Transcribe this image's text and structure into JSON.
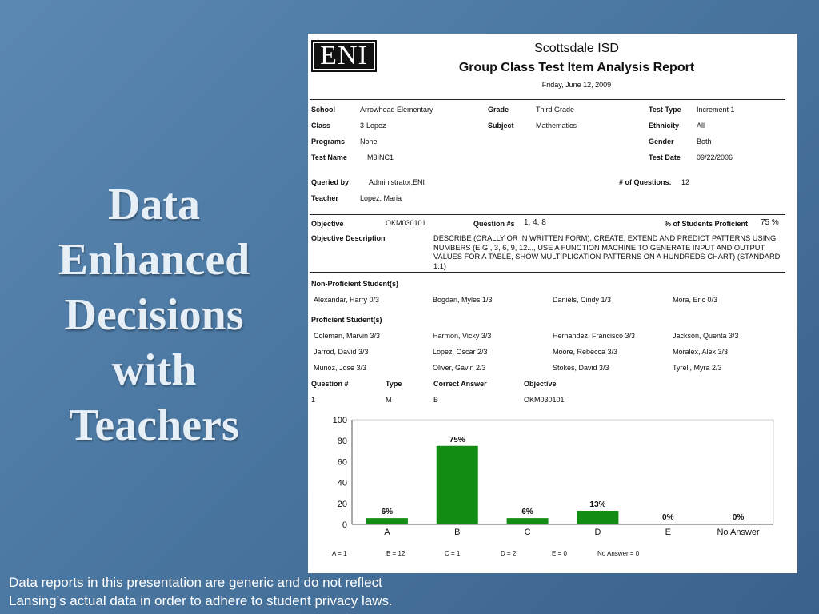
{
  "slide": {
    "title_lines": [
      "Data",
      "Enhanced",
      "Decisions",
      "with",
      "Teachers"
    ],
    "footnote_lines": [
      "Data reports in this presentation are generic and do not reflect",
      "Lansing’s actual data in order to adhere to student privacy laws."
    ]
  },
  "report": {
    "logo": "ENI",
    "org": "Scottsdale ISD",
    "title": "Group Class Test Item Analysis Report",
    "date": "Friday, June 12, 2009",
    "fields": {
      "school_label": "School",
      "school": "Arrowhead Elementary",
      "grade_label": "Grade",
      "grade": "Third Grade",
      "test_type_label": "Test Type",
      "test_type": "Increment 1",
      "class_label": "Class",
      "class": "3-Lopez",
      "subject_label": "Subject",
      "subject": "Mathematics",
      "ethnicity_label": "Ethnicity",
      "ethnicity": "All",
      "programs_label": "Programs",
      "programs": "None",
      "gender_label": "Gender",
      "gender": "Both",
      "test_name_label": "Test Name",
      "test_name": "M3INC1",
      "test_date_label": "Test Date",
      "test_date": "09/22/2006",
      "queried_by_label": "Queried by",
      "queried_by": "Administrator,ENI",
      "num_questions_label": "# of Questions:",
      "num_questions": "12",
      "teacher_label": "Teacher",
      "teacher": "Lopez, Maria"
    },
    "objective": {
      "label": "Objective",
      "value": "OKM030101",
      "question_label": "Question #s",
      "questions": "1, 4, 8",
      "proficient_label": "% of Students Proficient",
      "proficient": "75 %",
      "desc_label": "Objective Description",
      "description": "DESCRIBE (ORALLY OR IN WRITTEN FORM), CREATE, EXTEND AND PREDICT PATTERNS USING NUMBERS (E.G., 3, 6, 9, 12..., USE A FUNCTION MACHINE TO GENERATE INPUT AND OUTPUT VALUES FOR A TABLE, SHOW MULTIPLICATION PATTERNS ON A HUNDREDS CHART) (STANDARD 1.1)"
    },
    "non_proficient_label": "Non-Proficient Student(s)",
    "non_proficient": [
      "Alexandar, Harry 0/3",
      "Bogdan, Myles 1/3",
      "Daniels, Cindy 1/3",
      "Mora, Eric 0/3"
    ],
    "proficient_label": "Proficient Student(s)",
    "proficient": [
      "Coleman, Marvin 3/3",
      "Harmon, Vicky 3/3",
      "Hernandez, Francisco 3/3",
      "Jackson, Quenta 3/3",
      "Jarrod, David 3/3",
      "Lopez, Oscar 2/3",
      "Moore, Rebecca 3/3",
      "Moralex, Alex 3/3",
      "Munoz, Jose 3/3",
      "Oliver, Gavin 2/3",
      "Stokes, David 3/3",
      "Tyrell, Myra 2/3"
    ],
    "question_table": {
      "headers": [
        "Question #",
        "Type",
        "Correct Answer",
        "Objective"
      ],
      "row": [
        "1",
        "M",
        "B",
        "OKM030101"
      ]
    },
    "answer_counts": [
      "A = 1",
      "B = 12",
      "C = 1",
      "D = 2",
      "E  = 0",
      "No Answer  = 0"
    ]
  },
  "chart_data": {
    "type": "bar",
    "categories": [
      "A",
      "B",
      "C",
      "D",
      "E",
      "No Answer"
    ],
    "values": [
      6,
      75,
      6,
      13,
      0,
      0
    ],
    "value_labels": [
      "6%",
      "75%",
      "6%",
      "13%",
      "0%",
      "0%"
    ],
    "yticks": [
      "0",
      "20",
      "40",
      "60",
      "80",
      "100"
    ],
    "ylim": [
      0,
      100
    ],
    "bar_color": "#128c12"
  }
}
